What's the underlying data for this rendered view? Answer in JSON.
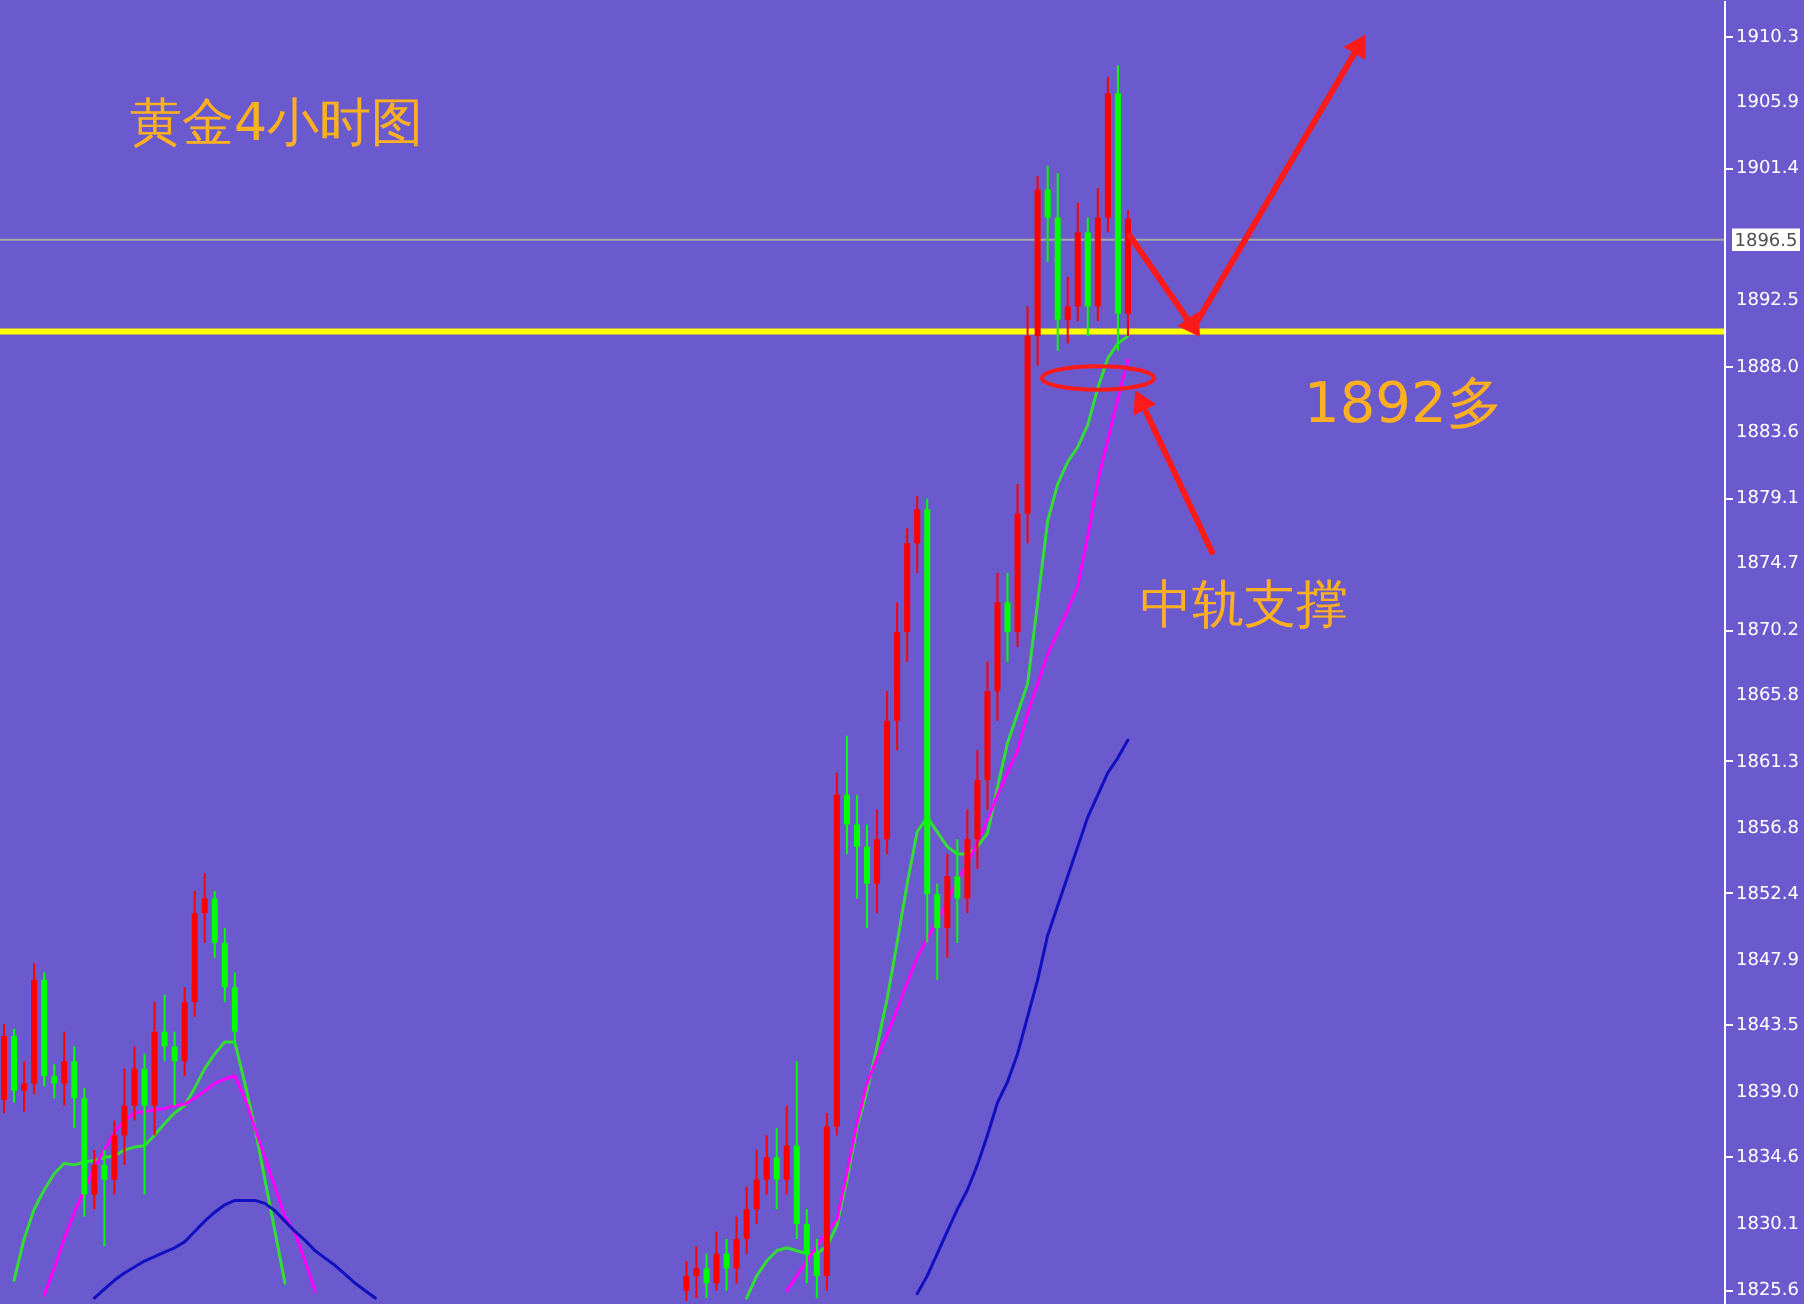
{
  "chart_data": {
    "type": "candlestick",
    "title": "黄金4小时图",
    "annotations": [
      "1892多",
      "中轨支撑"
    ],
    "categories": [
      null,
      null,
      null,
      null,
      null,
      null,
      null,
      null,
      null,
      null,
      null,
      null,
      null,
      null,
      null,
      null,
      null,
      null,
      null,
      null,
      null,
      null,
      null,
      null,
      null,
      null,
      null,
      null,
      null,
      null,
      null,
      null,
      null,
      null,
      null,
      null,
      null,
      null,
      null,
      null,
      null,
      null,
      null,
      null,
      null,
      null,
      null,
      null,
      null,
      null,
      null,
      null,
      null,
      null,
      null,
      null,
      null,
      null,
      null,
      null,
      null,
      null,
      null,
      null,
      null,
      null,
      null,
      null,
      null,
      null,
      null,
      null,
      null,
      null,
      null,
      null,
      null,
      null,
      null,
      null,
      null,
      null,
      null,
      null,
      null,
      null,
      null,
      null,
      null,
      null,
      null,
      null,
      null,
      null,
      null,
      null,
      null,
      null,
      null,
      null,
      null,
      null,
      null,
      null,
      null,
      null,
      null,
      null,
      null,
      null,
      null,
      null,
      null,
      null,
      null,
      null,
      null,
      null,
      null,
      null,
      null,
      null,
      null,
      null,
      null,
      null,
      null,
      null,
      null,
      null,
      null,
      null,
      null,
      null,
      null,
      null,
      null,
      null,
      null,
      null,
      null,
      null,
      null,
      null,
      null,
      null,
      null,
      null,
      null,
      null,
      null,
      null,
      null,
      null,
      null,
      null,
      null,
      null,
      null,
      null,
      null,
      null,
      null,
      null,
      null,
      null,
      null,
      null,
      null,
      null,
      null,
      null
    ],
    "ohlc": [
      [
        1838.4,
        1843.5,
        1837.5,
        1842.7
      ],
      [
        1842.7,
        1843.2,
        1838.2,
        1839
      ],
      [
        1839,
        1841,
        1837.6,
        1839.5
      ],
      [
        1839.5,
        1847.6,
        1838.8,
        1846.5
      ],
      [
        1846.5,
        1847,
        1839.3,
        1840
      ],
      [
        1840,
        1840.8,
        1838.5,
        1839.5
      ],
      [
        1839.5,
        1843,
        1838,
        1841
      ],
      [
        1841,
        1842,
        1836.5,
        1838.5
      ],
      [
        1838.5,
        1839.2,
        1830.5,
        1832
      ],
      [
        1832,
        1835,
        1831,
        1834
      ],
      [
        1834,
        1835,
        1828.5,
        1833
      ],
      [
        1833,
        1837,
        1832,
        1836
      ],
      [
        1836,
        1840.5,
        1834,
        1838
      ],
      [
        1838,
        1842,
        1837,
        1840.5
      ],
      [
        1840.5,
        1841.5,
        1832,
        1838
      ],
      [
        1838,
        1845,
        1836,
        1843
      ],
      [
        1843,
        1845.5,
        1841,
        1842
      ],
      [
        1842,
        1843,
        1838,
        1841
      ],
      [
        1841,
        1846,
        1840,
        1845
      ],
      [
        1845,
        1852.5,
        1844,
        1851
      ],
      [
        1851,
        1853.7,
        1849,
        1852
      ],
      [
        1852,
        1852.5,
        1848,
        1849
      ],
      [
        1849,
        1850,
        1845,
        1846
      ],
      [
        1846,
        1847,
        1842,
        1843
      ],
      null,
      null,
      null,
      null,
      null,
      null,
      null,
      null,
      null,
      null,
      null,
      null,
      null,
      null,
      null,
      null,
      null,
      null,
      null,
      null,
      null,
      null,
      null,
      null,
      null,
      null,
      null,
      null,
      null,
      null,
      null,
      null,
      null,
      null,
      null,
      null,
      null,
      null,
      null,
      null,
      null,
      null,
      null,
      null,
      [
        1825.5,
        1827.5,
        1824.8,
        1826.5
      ],
      [
        1826.5,
        1828.5,
        1825,
        1827
      ],
      [
        1827,
        1828,
        1825,
        1826
      ],
      [
        1826,
        1829.5,
        1825.5,
        1828
      ],
      [
        1828,
        1829,
        1825.5,
        1827
      ],
      [
        1827,
        1830.5,
        1826,
        1829
      ],
      [
        1829,
        1832.5,
        1828,
        1831
      ],
      [
        1831,
        1835,
        1830,
        1833
      ],
      [
        1833,
        1836,
        1832,
        1834.5
      ],
      [
        1834.5,
        1836.5,
        1831,
        1833
      ],
      [
        1833,
        1838,
        1832,
        1835.3
      ],
      [
        1835.3,
        1841,
        1829,
        1830
      ],
      [
        1830,
        1831,
        1826,
        1828
      ],
      [
        1828,
        1829,
        1825,
        1826.5
      ],
      [
        1826.5,
        1837.5,
        1825.5,
        1836.6
      ],
      [
        1836.6,
        1860.5,
        1836,
        1859
      ],
      [
        1859,
        1863,
        1855,
        1857
      ],
      [
        1857,
        1859,
        1852,
        1855.5
      ],
      [
        1855.5,
        1857,
        1850,
        1853
      ],
      [
        1853,
        1858,
        1851,
        1856
      ],
      [
        1856,
        1866,
        1855,
        1864
      ],
      [
        1864,
        1872,
        1862,
        1870
      ],
      [
        1870,
        1877,
        1868,
        1876
      ],
      [
        1876,
        1879.2,
        1874,
        1878.3
      ],
      [
        1878.3,
        1879,
        1849,
        1852.3
      ],
      [
        1852.3,
        1853,
        1846.5,
        1850
      ],
      [
        1850,
        1855,
        1848,
        1853.5
      ],
      [
        1853.5,
        1856,
        1849,
        1852
      ],
      [
        1852,
        1858,
        1851,
        1856
      ],
      [
        1856,
        1862,
        1854,
        1860
      ],
      [
        1860,
        1868,
        1858,
        1866
      ],
      [
        1866,
        1874,
        1864,
        1872
      ],
      [
        1872,
        1874,
        1868,
        1870
      ],
      [
        1870,
        1880,
        1869,
        1878
      ],
      [
        1878,
        1892,
        1876,
        1890
      ],
      [
        1890,
        1900.8,
        1888,
        1899.9
      ],
      [
        1899.9,
        1901.5,
        1895,
        1898
      ],
      [
        1898,
        1901,
        1889,
        1891.1
      ],
      [
        1891.1,
        1894,
        1889.5,
        1892
      ],
      [
        1892,
        1899,
        1891,
        1897
      ],
      [
        1897,
        1898,
        1890,
        1892
      ],
      [
        1892,
        1900,
        1891,
        1898
      ],
      [
        1898,
        1907.5,
        1897,
        1906.4
      ],
      [
        1906.4,
        1908.3,
        1889,
        1891.5
      ],
      [
        1891.5,
        1898.5,
        1890,
        1897.9
      ],
      null,
      null,
      null,
      null,
      null,
      null,
      null,
      null,
      null,
      null,
      null,
      null,
      null,
      null,
      null,
      null,
      null,
      null,
      null,
      null,
      null,
      null,
      null,
      null,
      null,
      null,
      null,
      null,
      null,
      null,
      null,
      null,
      null,
      null,
      null,
      null,
      null,
      null,
      null,
      null,
      null,
      null,
      null,
      null,
      null,
      null,
      null,
      null,
      null,
      null,
      null,
      null,
      null,
      null,
      null,
      null,
      null,
      null,
      null
    ],
    "colors": [
      "#ff0000",
      "#00ff00",
      "#ff0000",
      "#ff0000",
      "#00ff00",
      "#00ff00",
      "#ff0000",
      "#00ff00",
      "#00ff00",
      "#ff0000",
      "#00ff00",
      "#ff0000",
      "#ff0000",
      "#ff0000",
      "#00ff00",
      "#ff0000",
      "#00ff00",
      "#00ff00",
      "#ff0000",
      "#ff0000",
      "#ff0000",
      "#00ff00",
      "#00ff00",
      "#00ff00",
      null,
      null,
      null,
      null,
      null,
      null,
      null,
      null,
      null,
      null,
      null,
      null,
      null,
      null,
      null,
      null,
      null,
      null,
      null,
      null,
      null,
      null,
      null,
      null,
      null,
      null,
      null,
      null,
      null,
      null,
      null,
      null,
      null,
      null,
      null,
      null,
      null,
      null,
      null,
      null,
      null,
      null,
      null,
      null,
      "#ff0000",
      "#ff0000",
      "#00ff00",
      "#ff0000",
      "#00ff00",
      "#ff0000",
      "#ff0000",
      "#ff0000",
      "#ff0000",
      "#00ff00",
      "#ff0000",
      "#00ff00",
      "#00ff00",
      "#00ff00",
      "#ff0000",
      "#ff0000",
      "#00ff00",
      "#00ff00",
      "#00ff00",
      "#ff0000",
      "#ff0000",
      "#ff0000",
      "#ff0000",
      "#ff0000",
      "#00ff00",
      "#00ff00",
      "#ff0000",
      "#00ff00",
      "#ff0000",
      "#ff0000",
      "#ff0000",
      "#ff0000",
      "#00ff00",
      "#ff0000",
      "#ff0000",
      "#ff0000",
      "#00ff00",
      "#00ff00",
      "#ff0000",
      "#ff0000",
      "#00ff00",
      "#ff0000",
      "#ff0000",
      "#00ff00",
      "#ff0000",
      null,
      null,
      null,
      null,
      null,
      null,
      null,
      null,
      null,
      null,
      null,
      null,
      null,
      null,
      null,
      null,
      null,
      null,
      null,
      null,
      null,
      null,
      null,
      null,
      null,
      null,
      null,
      null,
      null,
      null,
      null,
      null,
      null,
      null,
      null,
      null,
      null,
      null,
      null,
      null,
      null,
      null,
      null,
      null,
      null,
      null,
      null,
      null,
      null,
      null,
      null,
      null,
      null,
      null,
      null,
      null,
      null,
      null,
      null
    ],
    "series": [
      {
        "type": "line",
        "color": "#33dd33",
        "values": [
          null,
          1826.2,
          1829,
          1831,
          1832.3,
          1833.4,
          1834.1,
          1834,
          1834.2,
          1834.3,
          1834.5,
          1834.6,
          1835,
          1835.2,
          1835.3,
          1836,
          1836.8,
          1837.5,
          1838,
          1839.2,
          1840.5,
          1841.5,
          1842.3,
          1842.3,
          1839.5,
          1836.5,
          1833,
          1829.5,
          1826,
          null,
          null,
          null,
          null,
          null,
          null,
          null,
          null,
          null,
          null,
          null,
          null,
          null,
          null,
          null,
          null,
          null,
          null,
          null,
          null,
          null,
          null,
          null,
          null,
          null,
          null,
          null,
          null,
          null,
          null,
          null,
          null,
          null,
          null,
          null,
          null,
          null,
          null,
          null,
          null,
          null,
          null,
          null,
          null,
          null,
          1825,
          1826.5,
          1827.5,
          1828.2,
          1828.4,
          1828.2,
          1828,
          1828,
          1828.5,
          1829.9,
          1833,
          1836.5,
          1839,
          1842,
          1845.2,
          1849,
          1853,
          1856.5,
          1857.5,
          1856.5,
          1855.5,
          1855,
          1855,
          1855.5,
          1856.4,
          1859.5,
          1862.5,
          1864.5,
          1866.5,
          1872,
          1877.5,
          1880,
          1881.5,
          1882.5,
          1884,
          1886.5,
          1888.5,
          1889.5,
          1890,
          null,
          null,
          null,
          null,
          null,
          null,
          null,
          null,
          null,
          null,
          null,
          null,
          null,
          null,
          null,
          null,
          null,
          null,
          null,
          null,
          null,
          null,
          null,
          null,
          null,
          null,
          null,
          null,
          null,
          null,
          null,
          null,
          null,
          null,
          null,
          null,
          null,
          null,
          null,
          null,
          null,
          null,
          null,
          null,
          null,
          null,
          null,
          null,
          null,
          null,
          null,
          null,
          null,
          null,
          null,
          null,
          null,
          null,
          null
        ]
      },
      {
        "type": "line",
        "color": "#ff00ff",
        "values": [
          null,
          null,
          null,
          null,
          1825.2,
          1827,
          1829,
          1830.8,
          1832.3,
          1833.8,
          1835,
          1836.2,
          1837,
          1837.5,
          1837.6,
          1837.7,
          1837.8,
          1838,
          1838.1,
          1838.5,
          1839,
          1839.5,
          1839.8,
          1840,
          1838.5,
          1836.5,
          1834.5,
          1832.5,
          1830.5,
          1829.4,
          1827.5,
          1825.5,
          null,
          null,
          null,
          null,
          null,
          null,
          null,
          null,
          null,
          null,
          null,
          null,
          null,
          null,
          null,
          null,
          null,
          null,
          null,
          null,
          null,
          null,
          null,
          null,
          null,
          null,
          null,
          null,
          null,
          null,
          null,
          null,
          null,
          null,
          null,
          null,
          null,
          null,
          null,
          null,
          null,
          null,
          null,
          null,
          null,
          null,
          1825.5,
          1826.5,
          1827.5,
          1828.5,
          1829.5,
          1830.3,
          1833.5,
          1836.8,
          1839.5,
          1841.2,
          1842.8,
          1844.5,
          1846.3,
          1848,
          1849.3,
          1850.5,
          1851.8,
          1853.2,
          1854.3,
          1855.8,
          1857.3,
          1859,
          1860.5,
          1862,
          1864.5,
          1866.5,
          1868.5,
          1870,
          1871.5,
          1873.1,
          1876.5,
          1880.2,
          1883,
          1885.8,
          1888.4,
          null,
          null,
          null,
          null,
          null,
          null,
          null,
          null,
          null,
          null,
          null,
          null,
          null,
          null,
          null,
          null,
          null,
          null,
          null,
          null,
          null,
          null,
          null,
          null,
          null,
          null,
          null,
          null,
          null,
          null,
          null,
          null,
          null,
          null,
          null,
          null,
          null,
          null,
          null,
          null,
          null,
          null,
          null,
          null,
          null,
          null,
          null,
          null,
          null,
          null,
          null,
          null,
          null,
          null,
          null,
          null,
          null,
          null,
          null
        ]
      },
      {
        "type": "line",
        "color": "#1010c0",
        "values": [
          null,
          null,
          null,
          null,
          null,
          null,
          null,
          null,
          null,
          1825,
          1825.6,
          1826.2,
          1826.7,
          1827.1,
          1827.5,
          1827.8,
          1828.1,
          1828.4,
          1828.8,
          1829.5,
          1830.2,
          1830.8,
          1831.3,
          1831.6,
          1831.6,
          1831.6,
          1831.4,
          1830.9,
          1830.2,
          1829.5,
          1828.9,
          1828.2,
          1827.7,
          1827.2,
          1826.6,
          1826,
          1825.5,
          1825,
          null,
          null,
          null,
          null,
          null,
          null,
          null,
          null,
          null,
          null,
          null,
          null,
          null,
          null,
          null,
          null,
          null,
          null,
          null,
          null,
          null,
          null,
          null,
          null,
          null,
          null,
          null,
          null,
          null,
          null,
          null,
          null,
          null,
          null,
          null,
          null,
          null,
          null,
          null,
          null,
          null,
          null,
          null,
          null,
          null,
          null,
          null,
          null,
          null,
          null,
          null,
          null,
          null,
          1825.3,
          1826.5,
          1828,
          1829.5,
          1831,
          1832.3,
          1834,
          1836,
          1838.2,
          1839.6,
          1841.5,
          1844,
          1846.5,
          1849.5,
          1851.5,
          1853.5,
          1855.5,
          1857.5,
          1859,
          1860.5,
          1861.5,
          1862.7,
          null,
          null,
          null,
          null,
          null,
          null,
          null,
          null,
          null,
          null,
          null,
          null,
          null,
          null,
          null,
          null,
          null,
          null,
          null,
          null,
          null,
          null,
          null,
          null,
          null,
          null,
          null,
          null,
          null,
          null,
          null,
          null,
          null,
          null,
          null,
          null,
          null,
          null,
          null,
          null,
          null,
          null,
          null,
          null,
          null,
          null,
          null,
          null,
          null,
          null,
          null,
          null,
          null,
          null,
          null,
          null,
          null,
          null,
          null
        ]
      }
    ],
    "ylim": [
      1824.6,
      1912.7
    ],
    "yticks": [
      1910.3,
      1905.9,
      1901.4,
      1892.5,
      {
        "value": 1888,
        "label": "1888.0"
      },
      1883.6,
      1879.1,
      1874.7,
      1870.2,
      1865.8,
      1861.3,
      1856.8,
      1852.4,
      1847.9,
      1843.5,
      {
        "value": 1839,
        "label": "1839.0"
      },
      1834.6,
      1830.1,
      1825.6
    ],
    "ref_lines": [
      {
        "axis": "y",
        "value": 1896.5,
        "label": "1896.5",
        "color": "#a8a8a8"
      },
      {
        "axis": "y",
        "value": 1890.3,
        "color": "#ffff00"
      }
    ],
    "grid": false,
    "tick_labels": "y"
  }
}
